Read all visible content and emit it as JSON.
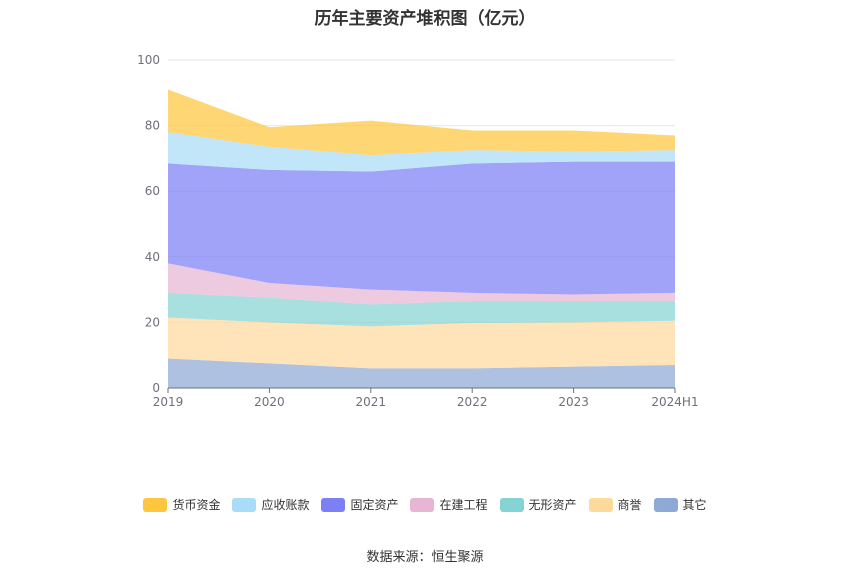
{
  "chart_data": {
    "type": "area",
    "title": "历年主要资产堆积图（亿元）",
    "categories": [
      "2019",
      "2020",
      "2021",
      "2022",
      "2023",
      "2024H1"
    ],
    "ylim": [
      0,
      100
    ],
    "yticks": [
      0,
      20,
      40,
      60,
      80,
      100
    ],
    "grid": true,
    "legend_position": "bottom",
    "series": [
      {
        "name": "其它",
        "color": "#8fa9d6",
        "values": [
          9.0,
          7.5,
          6.0,
          6.0,
          6.5,
          7.0
        ]
      },
      {
        "name": "商誉",
        "color": "#fdd99c",
        "values": [
          12.5,
          12.5,
          12.8,
          13.8,
          13.5,
          13.5
        ]
      },
      {
        "name": "无形资产",
        "color": "#86d3d3",
        "values": [
          7.5,
          7.5,
          6.7,
          6.7,
          6.5,
          6.0
        ]
      },
      {
        "name": "在建工程",
        "color": "#e6b6d4",
        "values": [
          9.0,
          4.5,
          4.5,
          2.5,
          2.0,
          2.5
        ]
      },
      {
        "name": "固定资产",
        "color": "#7d7ff5",
        "values": [
          30.5,
          34.5,
          36.0,
          39.5,
          40.5,
          40.0
        ]
      },
      {
        "name": "应收账款",
        "color": "#a9dcf7",
        "values": [
          9.5,
          7.0,
          5.0,
          4.0,
          3.0,
          3.5
        ]
      },
      {
        "name": "货币资金",
        "color": "#fdc63e",
        "values": [
          13.0,
          6.0,
          10.5,
          6.0,
          6.5,
          4.5
        ]
      }
    ]
  },
  "legend_order": [
    "货币资金",
    "应收账款",
    "固定资产",
    "在建工程",
    "无形资产",
    "商誉",
    "其它"
  ],
  "source": "数据来源：恒生聚源"
}
